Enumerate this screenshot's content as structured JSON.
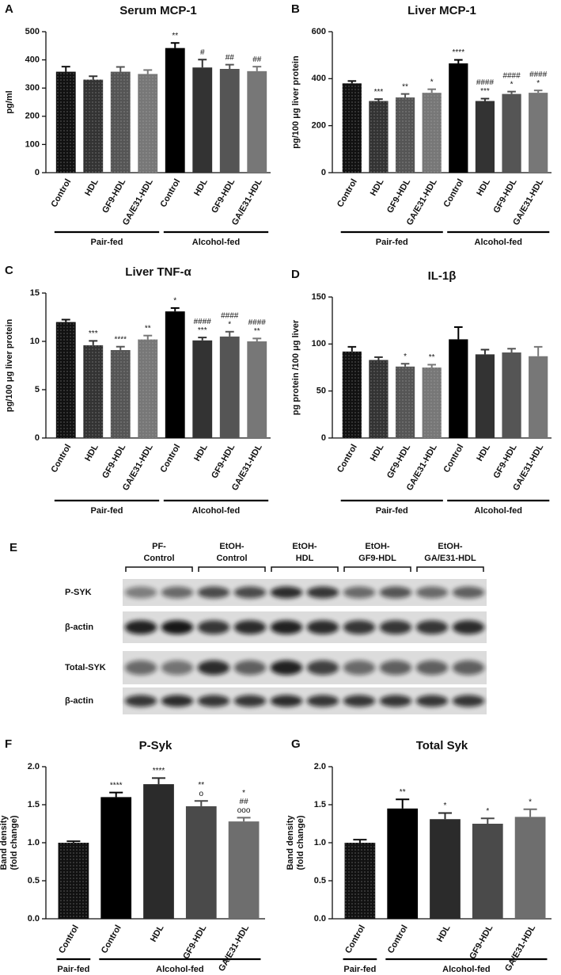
{
  "chart_data": [
    {
      "type": "bar",
      "panel": "A",
      "title": "Serum MCP-1",
      "ylabel": [
        "pg/ml"
      ],
      "categories": [
        "Control",
        "HDL",
        "GF9-HDL",
        "GA/E31-HDL",
        "Control",
        "HDL",
        "GF9-HDL",
        "GA/E31-HDL"
      ],
      "groups": [
        "Pair-fed",
        "Pair-fed",
        "Pair-fed",
        "Pair-fed",
        "Alcohol-fed",
        "Alcohol-fed",
        "Alcohol-fed",
        "Alcohol-fed"
      ],
      "values": [
        358,
        330,
        358,
        350,
        442,
        373,
        368,
        360
      ],
      "errors": [
        18,
        12,
        17,
        14,
        18,
        28,
        15,
        16
      ],
      "colors": [
        "#111111",
        "#333333",
        "#555555",
        "#777777",
        "#000000",
        "#333333",
        "#555555",
        "#777777"
      ],
      "dotted": [
        true,
        true,
        true,
        true,
        false,
        false,
        false,
        false
      ],
      "annotations": [
        [],
        [],
        [],
        [],
        [
          "**"
        ],
        [
          "#"
        ],
        [
          "##"
        ],
        [
          "##"
        ]
      ],
      "ylim": [
        0,
        500
      ],
      "yticks": [
        0,
        100,
        200,
        300,
        400,
        500
      ]
    },
    {
      "type": "bar",
      "panel": "B",
      "title": "Liver MCP-1",
      "ylabel": [
        "pg/100 μg liver protein"
      ],
      "categories": [
        "Control",
        "HDL",
        "GF9-HDL",
        "GA/E31-HDL",
        "Control",
        "HDL",
        "GF9-HDL",
        "GA/E31-HDL"
      ],
      "groups": [
        "Pair-fed",
        "Pair-fed",
        "Pair-fed",
        "Pair-fed",
        "Alcohol-fed",
        "Alcohol-fed",
        "Alcohol-fed",
        "Alcohol-fed"
      ],
      "values": [
        380,
        305,
        320,
        340,
        465,
        305,
        335,
        340
      ],
      "errors": [
        10,
        8,
        15,
        15,
        15,
        10,
        10,
        10
      ],
      "colors": [
        "#111111",
        "#333333",
        "#555555",
        "#777777",
        "#000000",
        "#333333",
        "#555555",
        "#777777"
      ],
      "dotted": [
        true,
        true,
        true,
        true,
        false,
        false,
        false,
        false
      ],
      "annotations": [
        [],
        [
          "***"
        ],
        [
          "**"
        ],
        [
          "*"
        ],
        [
          "****"
        ],
        [
          "####",
          "***"
        ],
        [
          "####",
          "*"
        ],
        [
          "####",
          "*"
        ]
      ],
      "ylim": [
        0,
        600
      ],
      "yticks": [
        0,
        200,
        400,
        600
      ]
    },
    {
      "type": "bar",
      "panel": "C",
      "title": "Liver TNF-α",
      "ylabel": [
        "pg/100 μg liver protein"
      ],
      "categories": [
        "Control",
        "HDL",
        "GF9-HDL",
        "GA/E31-HDL",
        "Control",
        "HDL",
        "GF9-HDL",
        "GA/E31-HDL"
      ],
      "groups": [
        "Pair-fed",
        "Pair-fed",
        "Pair-fed",
        "Pair-fed",
        "Alcohol-fed",
        "Alcohol-fed",
        "Alcohol-fed",
        "Alcohol-fed"
      ],
      "values": [
        12.0,
        9.6,
        9.1,
        10.2,
        13.1,
        10.1,
        10.5,
        10.0
      ],
      "errors": [
        0.25,
        0.45,
        0.35,
        0.4,
        0.35,
        0.3,
        0.5,
        0.3
      ],
      "colors": [
        "#111111",
        "#333333",
        "#555555",
        "#777777",
        "#000000",
        "#333333",
        "#555555",
        "#777777"
      ],
      "dotted": [
        true,
        true,
        true,
        true,
        false,
        false,
        false,
        false
      ],
      "annotations": [
        [],
        [
          "***"
        ],
        [
          "****"
        ],
        [
          "**"
        ],
        [
          "*"
        ],
        [
          "####",
          "***"
        ],
        [
          "####",
          "*"
        ],
        [
          "####",
          "**"
        ]
      ],
      "ylim": [
        0,
        15
      ],
      "yticks": [
        0,
        5,
        10,
        15
      ]
    },
    {
      "type": "bar",
      "panel": "D",
      "title": "IL-1β",
      "ylabel": [
        "pg protein /100 μg liver"
      ],
      "categories": [
        "Control",
        "HDL",
        "GF9-HDL",
        "GA/E31-HDL",
        "Control",
        "HDL",
        "GF9-HDL",
        "GA/E31-HDL"
      ],
      "groups": [
        "Pair-fed",
        "Pair-fed",
        "Pair-fed",
        "Pair-fed",
        "Alcohol-fed",
        "Alcohol-fed",
        "Alcohol-fed",
        "Alcohol-fed"
      ],
      "values": [
        92,
        83,
        76,
        75,
        105,
        89,
        91,
        87
      ],
      "errors": [
        5,
        3,
        3,
        3,
        13,
        5,
        4,
        10
      ],
      "colors": [
        "#111111",
        "#333333",
        "#555555",
        "#777777",
        "#000000",
        "#333333",
        "#555555",
        "#777777"
      ],
      "dotted": [
        true,
        true,
        true,
        true,
        false,
        false,
        false,
        false
      ],
      "annotations": [
        [],
        [],
        [
          "*"
        ],
        [
          "**"
        ],
        [],
        [],
        [],
        []
      ],
      "ylim": [
        0,
        150
      ],
      "yticks": [
        0,
        50,
        100,
        150
      ]
    },
    {
      "type": "bar",
      "panel": "F",
      "title": "P-Syk",
      "ylabel": [
        "Band density",
        "(fold change)"
      ],
      "categories": [
        "Control",
        "Control",
        "HDL",
        "GF9-HDL",
        "GA/E31-HDL"
      ],
      "groups": [
        "Pair-fed",
        "Alcohol-fed",
        "Alcohol-fed",
        "Alcohol-fed",
        "Alcohol-fed"
      ],
      "values": [
        1.0,
        1.6,
        1.77,
        1.48,
        1.28
      ],
      "errors": [
        0.02,
        0.06,
        0.08,
        0.07,
        0.05
      ],
      "colors": [
        "#111111",
        "#000000",
        "#2b2b2b",
        "#4a4a4a",
        "#6e6e6e"
      ],
      "dotted": [
        true,
        false,
        false,
        false,
        false
      ],
      "annotations": [
        [],
        [
          "****"
        ],
        [
          "****"
        ],
        [
          "**",
          "o"
        ],
        [
          "*",
          "##",
          "ooo"
        ]
      ],
      "ylim": [
        0,
        2
      ],
      "yticks": [
        {
          "value": 0,
          "label": "0.0"
        },
        0.5,
        {
          "value": 1,
          "label": "1.0"
        },
        1.5,
        {
          "value": 2,
          "label": "2.0"
        }
      ]
    },
    {
      "type": "bar",
      "panel": "G",
      "title": "Total Syk",
      "ylabel": [
        "Band density",
        "(fold change)"
      ],
      "categories": [
        "Control",
        "Control",
        "HDL",
        "GF9-HDL",
        "GA/E31-HDL"
      ],
      "groups": [
        "Pair-fed",
        "Alcohol-fed",
        "Alcohol-fed",
        "Alcohol-fed",
        "Alcohol-fed"
      ],
      "values": [
        1.0,
        1.45,
        1.31,
        1.25,
        1.34
      ],
      "errors": [
        0.04,
        0.12,
        0.08,
        0.07,
        0.1
      ],
      "colors": [
        "#111111",
        "#000000",
        "#2b2b2b",
        "#4a4a4a",
        "#6e6e6e"
      ],
      "dotted": [
        true,
        false,
        false,
        false,
        false
      ],
      "annotations": [
        [],
        [
          "**"
        ],
        [
          "*"
        ],
        [
          "*"
        ],
        [
          "*"
        ]
      ],
      "ylim": [
        0,
        2
      ],
      "yticks": [
        {
          "value": 0,
          "label": "0.0"
        },
        0.5,
        {
          "value": 1,
          "label": "1.0"
        },
        1.5,
        {
          "value": 2,
          "label": "2.0"
        }
      ]
    }
  ],
  "blot": {
    "panel": "E",
    "columns": [
      [
        "PF-",
        "Control"
      ],
      [
        "EtOH-",
        "Control"
      ],
      [
        "EtOH-",
        "HDL"
      ],
      [
        "EtOH-",
        "GF9-HDL"
      ],
      [
        "EtOH-",
        "GA/E31-HDL"
      ]
    ],
    "rows": [
      "P-SYK",
      "β-actin",
      "Total-SYK",
      "β-actin"
    ]
  }
}
